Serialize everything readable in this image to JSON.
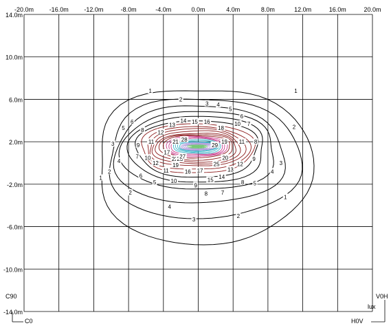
{
  "chart_data": {
    "type": "contour",
    "x_range": [
      -20,
      20
    ],
    "y_range": [
      -14,
      14
    ],
    "x_ticks": [
      "-20.0m",
      "-16.0m",
      "-12.0m",
      "-8.0m",
      "-4.0m",
      "0.0m",
      "4.0m",
      "8.0m",
      "12.0m",
      "16.0m",
      "20.0m"
    ],
    "y_ticks": [
      "14.0m",
      "10.0m",
      "6.0m",
      "2.0m",
      "-2.0m",
      "-6.0m",
      "-10.0m",
      "-14.0m"
    ],
    "grid": true,
    "unit_label": "lux",
    "corner_labels": {
      "top_left_below_grid": "C90",
      "bottom_left": "C0",
      "right_top": "V0H",
      "bottom_right": "H0V"
    },
    "center": [
      0,
      2
    ],
    "contour_levels": [
      1,
      2,
      3,
      4,
      5,
      6,
      7,
      8,
      9,
      10,
      11,
      12,
      13,
      14,
      15,
      16,
      17,
      18,
      19,
      20,
      21,
      22,
      23,
      24,
      25,
      26,
      27,
      28,
      29
    ],
    "extents": {
      "1": {
        "x": [
          -11.5,
          12.8
        ],
        "y": [
          -7.5,
          7.0
        ]
      },
      "2": {
        "x": [
          -10.3,
          11.5
        ],
        "y": [
          -5.2,
          6.0
        ]
      },
      "3": {
        "x": [
          -9.5,
          9.8
        ],
        "y": [
          -3.8,
          5.3
        ]
      },
      "4": {
        "x": [
          -8.7,
          8.8
        ],
        "y": [
          -2.5,
          4.8
        ]
      },
      "5": {
        "x": [
          -7.8,
          7.6
        ],
        "y": [
          -1.8,
          4.4
        ]
      },
      "6": {
        "x": [
          -7.0,
          6.8
        ],
        "y": [
          -1.3,
          4.0
        ]
      },
      "7": {
        "x": [
          -6.5,
          6.3
        ],
        "y": [
          -0.9,
          3.7
        ]
      },
      "8": {
        "x": [
          -6.0,
          5.8
        ],
        "y": [
          -0.6,
          3.4
        ]
      },
      "9": {
        "x": [
          -5.6,
          5.3
        ],
        "y": [
          -0.3,
          3.2
        ]
      },
      "10": {
        "x": [
          -5.2,
          4.8
        ],
        "y": [
          -0.1,
          3.0
        ]
      },
      "11": {
        "x": [
          -4.8,
          4.4
        ],
        "y": [
          0.1,
          2.8
        ]
      },
      "12": {
        "x": [
          -4.4,
          4.0
        ],
        "y": [
          0.3,
          2.7
        ]
      },
      "13": {
        "x": [
          -4.0,
          3.6
        ],
        "y": [
          0.5,
          2.6
        ]
      },
      "14": {
        "x": [
          -3.7,
          3.3
        ],
        "y": [
          0.6,
          2.5
        ]
      },
      "15": {
        "x": [
          -3.4,
          3.0
        ],
        "y": [
          0.7,
          2.4
        ]
      },
      "16": {
        "x": [
          -3.1,
          2.8
        ],
        "y": [
          0.8,
          2.3
        ]
      },
      "17": {
        "x": [
          -2.8,
          2.6
        ],
        "y": [
          0.9,
          2.2
        ]
      },
      "18": {
        "x": [
          -2.6,
          2.4
        ],
        "y": [
          1.0,
          2.1
        ]
      },
      "19": {
        "x": [
          -2.4,
          2.2
        ],
        "y": [
          1.1,
          2.0
        ]
      },
      "20": {
        "x": [
          -2.2,
          2.0
        ],
        "y": [
          1.15,
          1.95
        ]
      },
      "21": {
        "x": [
          -2.0,
          1.8
        ],
        "y": [
          1.2,
          1.9
        ]
      },
      "22": {
        "x": [
          -1.8,
          1.6
        ],
        "y": [
          1.25,
          1.85
        ]
      },
      "23": {
        "x": [
          -1.6,
          1.4
        ],
        "y": [
          1.3,
          1.8
        ]
      },
      "24": {
        "x": [
          -1.4,
          1.2
        ],
        "y": [
          1.35,
          1.75
        ]
      },
      "25": {
        "x": [
          -1.2,
          1.0
        ],
        "y": [
          1.4,
          1.7
        ]
      },
      "26": {
        "x": [
          -1.0,
          0.8
        ],
        "y": [
          1.45,
          1.65
        ]
      },
      "27": {
        "x": [
          -0.8,
          0.6
        ],
        "y": [
          1.5,
          1.6
        ]
      },
      "28": {
        "x": [
          -0.6,
          0.4
        ],
        "y": [
          1.52,
          1.58
        ]
      },
      "29": {
        "x": [
          -0.4,
          0.2
        ],
        "y": [
          1.54,
          1.56
        ]
      }
    },
    "level_colors": {
      "1-6": "#000000",
      "7-13": "#8b1a1a",
      "14-16": "#c83c8c",
      "17-20": "#3cb4c8",
      "21-24": "#b4a0dc",
      "25-29": "#78c878"
    },
    "labels": [
      {
        "t": "1",
        "x": -5.5,
        "y": 6.8
      },
      {
        "t": "1",
        "x": 11.2,
        "y": 6.8
      },
      {
        "t": "1",
        "x": -11.2,
        "y": -1.4
      },
      {
        "t": "1",
        "x": 10.0,
        "y": -3.2
      },
      {
        "t": "2",
        "x": -2.0,
        "y": 6.0
      },
      {
        "t": "2",
        "x": 11.0,
        "y": 3.4
      },
      {
        "t": "2",
        "x": -10.2,
        "y": -0.8
      },
      {
        "t": "2",
        "x": -7.8,
        "y": -2.8
      },
      {
        "t": "2",
        "x": 4.6,
        "y": -5.0
      },
      {
        "t": "3",
        "x": 1.0,
        "y": 5.6
      },
      {
        "t": "3",
        "x": -9.8,
        "y": 1.8
      },
      {
        "t": "3",
        "x": 9.5,
        "y": 0.0
      },
      {
        "t": "3",
        "x": -0.5,
        "y": -5.3
      },
      {
        "t": "4",
        "x": 2.3,
        "y": 5.5
      },
      {
        "t": "4",
        "x": -9.1,
        "y": 0.2
      },
      {
        "t": "4",
        "x": 8.5,
        "y": -0.8
      },
      {
        "t": "4",
        "x": -3.3,
        "y": -4.1
      },
      {
        "t": "5",
        "x": 3.7,
        "y": 5.1
      },
      {
        "t": "5",
        "x": -8.6,
        "y": 3.3
      },
      {
        "t": "5",
        "x": -5.0,
        "y": -1.8
      },
      {
        "t": "5",
        "x": 6.5,
        "y": -1.9
      },
      {
        "t": "6",
        "x": 5.0,
        "y": 4.4
      },
      {
        "t": "6",
        "x": -7.6,
        "y": 3.9
      },
      {
        "t": "6",
        "x": -6.6,
        "y": -1.2
      },
      {
        "t": "7",
        "x": 5.8,
        "y": 3.7
      },
      {
        "t": "7",
        "x": -7.0,
        "y": 0.6
      },
      {
        "t": "7",
        "x": 2.8,
        "y": -2.8
      },
      {
        "t": "8",
        "x": -6.4,
        "y": 3.1
      },
      {
        "t": "8",
        "x": 6.6,
        "y": 2.0
      },
      {
        "t": "8",
        "x": 0.9,
        "y": -2.9
      },
      {
        "t": "8",
        "x": 5.1,
        "y": -1.8
      },
      {
        "t": "9",
        "x": -6.9,
        "y": 1.7
      },
      {
        "t": "9",
        "x": 6.4,
        "y": 0.4
      },
      {
        "t": "9",
        "x": -0.3,
        "y": -2.1
      },
      {
        "t": "10",
        "x": 4.5,
        "y": 3.7
      },
      {
        "t": "10",
        "x": -5.8,
        "y": 0.5
      },
      {
        "t": "10",
        "x": -2.8,
        "y": -1.7
      },
      {
        "t": "11",
        "x": -5.4,
        "y": 2.0
      },
      {
        "t": "11",
        "x": 5.0,
        "y": 2.0
      },
      {
        "t": "11",
        "x": -3.7,
        "y": -0.7
      },
      {
        "t": "12",
        "x": -4.3,
        "y": 2.9
      },
      {
        "t": "12",
        "x": -4.9,
        "y": 0.0
      },
      {
        "t": "12",
        "x": 4.8,
        "y": -0.1
      },
      {
        "t": "13",
        "x": -3.0,
        "y": 3.6
      },
      {
        "t": "13",
        "x": 3.7,
        "y": -0.6
      },
      {
        "t": "14",
        "x": -1.7,
        "y": 4.0
      },
      {
        "t": "14",
        "x": 2.7,
        "y": -1.3
      },
      {
        "t": "15",
        "x": -0.4,
        "y": 3.9
      },
      {
        "t": "15",
        "x": 1.4,
        "y": -1.6
      },
      {
        "t": "16",
        "x": 1.0,
        "y": 3.9
      },
      {
        "t": "16",
        "x": -1.2,
        "y": -0.8
      },
      {
        "t": "17",
        "x": -3.6,
        "y": 1.0
      },
      {
        "t": "17",
        "x": 0.2,
        "y": -0.7
      },
      {
        "t": "18",
        "x": 2.6,
        "y": 3.3
      },
      {
        "t": "19",
        "x": 3.0,
        "y": 2.0
      },
      {
        "t": "19",
        "x": -2.6,
        "y": -0.2
      },
      {
        "t": "20",
        "x": 3.1,
        "y": 0.5
      },
      {
        "t": "21",
        "x": -2.6,
        "y": 2.0
      },
      {
        "t": "22",
        "x": -2.7,
        "y": 0.4
      },
      {
        "t": "23",
        "x": -2.1,
        "y": 0.4
      },
      {
        "t": "25",
        "x": 2.1,
        "y": -0.1
      },
      {
        "t": "27",
        "x": -1.8,
        "y": 0.6
      },
      {
        "t": "28",
        "x": -1.6,
        "y": 2.2
      },
      {
        "t": "29",
        "x": 1.9,
        "y": 1.7
      }
    ]
  }
}
